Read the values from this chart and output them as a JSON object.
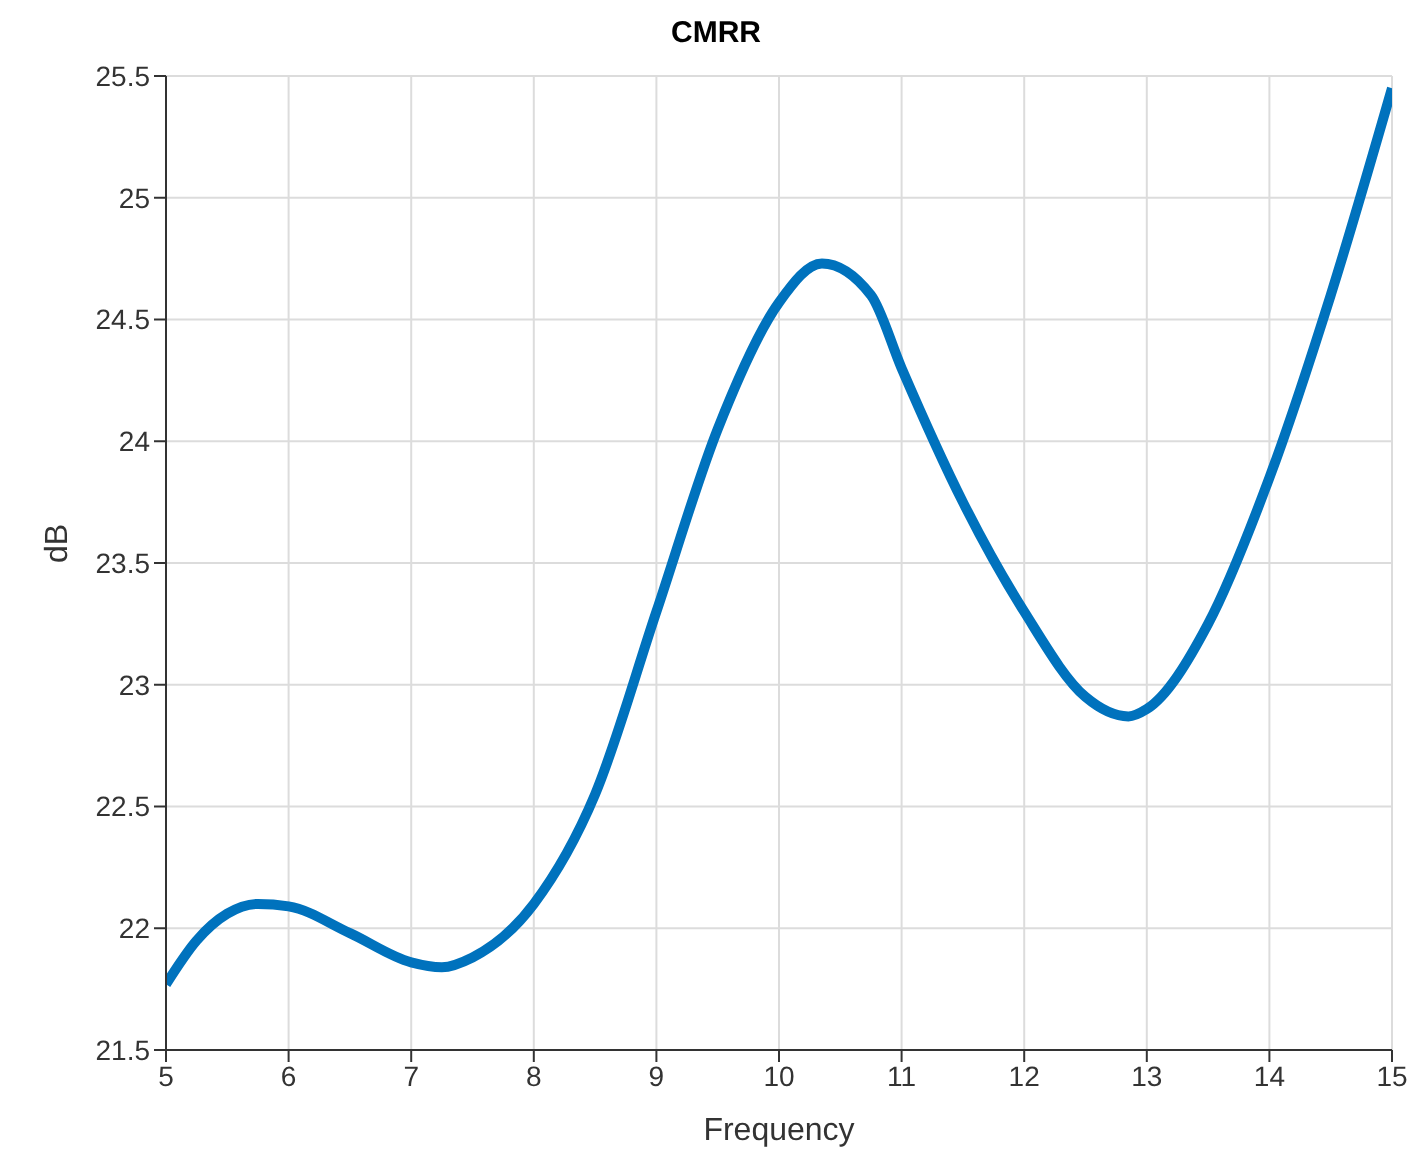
{
  "chart_data": {
    "type": "line",
    "title": "CMRR",
    "xlabel": "Frequency",
    "ylabel": "dB",
    "grid": true,
    "marker": "none",
    "line_style": "solid",
    "x": [
      5,
      5.25,
      5.5,
      5.75,
      6,
      6.5,
      7,
      7.25,
      7.5,
      8,
      8.5,
      9,
      9.5,
      10,
      10.35,
      10.75,
      11,
      11.5,
      12,
      12.5,
      12.85,
      13,
      13.5,
      14,
      14.5,
      15
    ],
    "series": [
      {
        "color": "#0072bd",
        "values": [
          21.77,
          21.95,
          22.06,
          22.1,
          22.09,
          21.98,
          21.86,
          21.84,
          21.88,
          22.1,
          22.55,
          23.3,
          24.05,
          24.57,
          24.73,
          24.6,
          24.3,
          23.75,
          23.3,
          22.95,
          22.87,
          22.9,
          23.25,
          23.85,
          24.6,
          25.45
        ]
      }
    ],
    "xlim": [
      5,
      15
    ],
    "xticks": [
      5,
      6,
      7,
      8,
      9,
      10,
      11,
      12,
      13,
      14,
      15
    ],
    "ylim": [
      21.5,
      25.5
    ],
    "yticks": [
      21.5,
      22,
      22.5,
      23,
      23.5,
      24,
      24.5,
      25,
      25.5
    ]
  }
}
